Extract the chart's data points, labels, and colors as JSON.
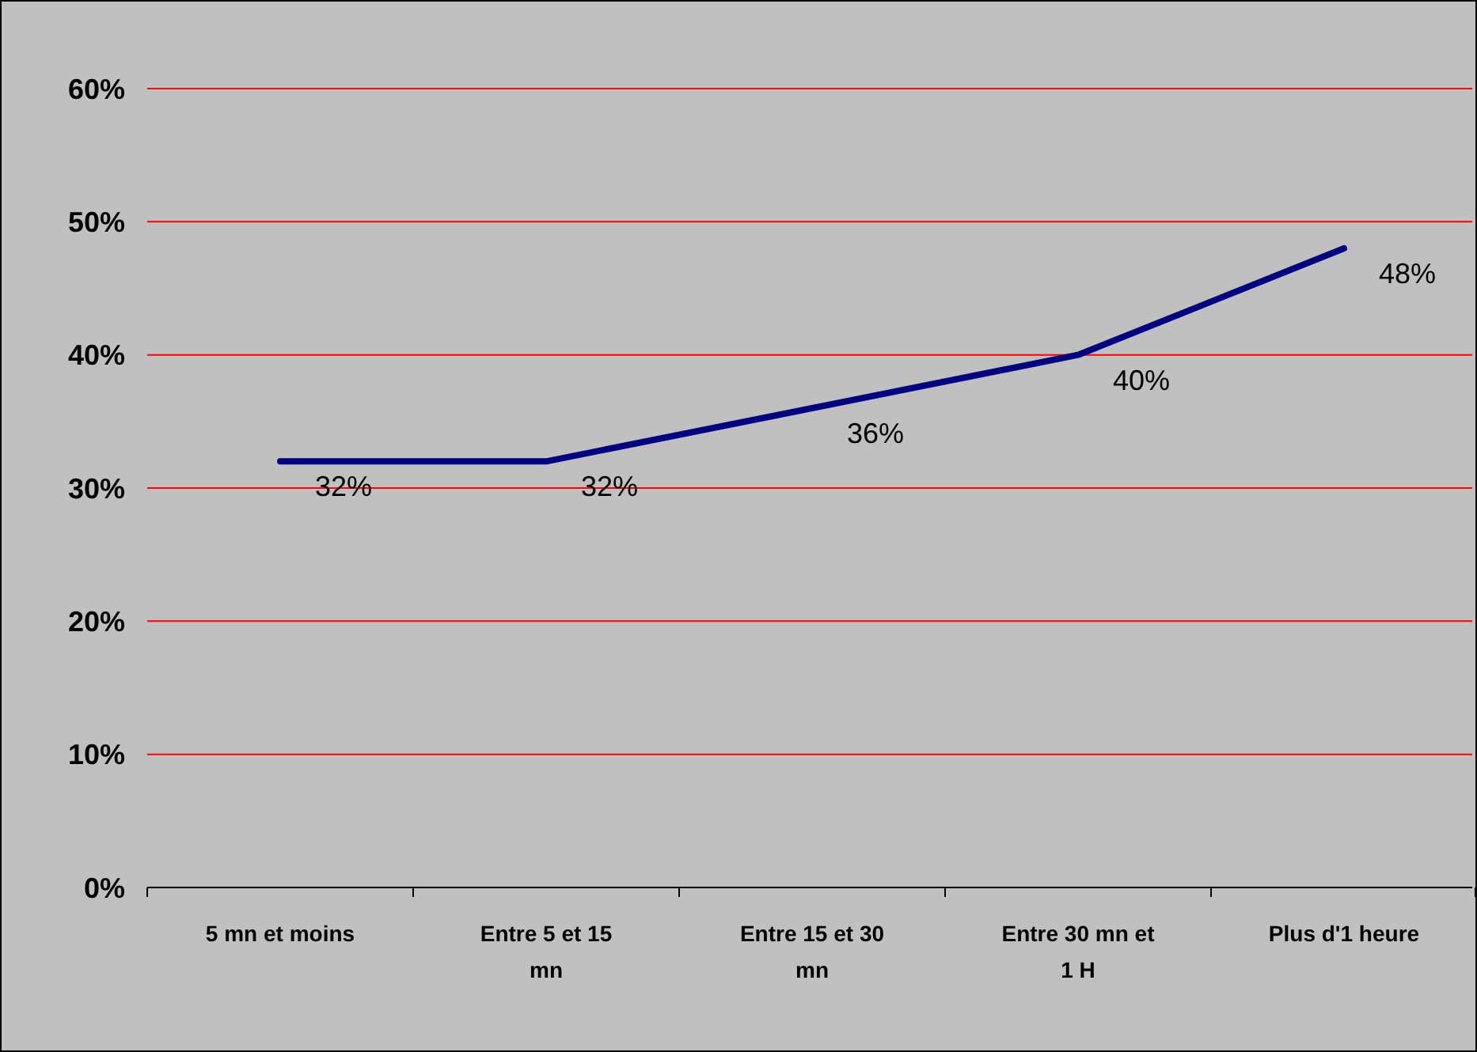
{
  "chart_data": {
    "type": "line",
    "categories": [
      "5 mn et moins",
      "Entre 5 et 15 mn",
      "Entre 15 et 30 mn",
      "Entre 30 mn et 1 H",
      "Plus d'1 heure"
    ],
    "series": [
      {
        "color": "#000080",
        "values": [
          32,
          32,
          36,
          40,
          48
        ],
        "value_labels": [
          "32%",
          "32%",
          "36%",
          "40%",
          "48%"
        ]
      }
    ],
    "ylim": [
      0,
      60
    ],
    "yticks": [
      {
        "value": 0,
        "label": "0%"
      },
      {
        "value": 10,
        "label": "10%"
      },
      {
        "value": 20,
        "label": "20%"
      },
      {
        "value": 30,
        "label": "30%"
      },
      {
        "value": 40,
        "label": "40%"
      },
      {
        "value": 50,
        "label": "50%"
      },
      {
        "value": 60,
        "label": "60%"
      }
    ],
    "grid": "y",
    "marker": "none",
    "line_style": "solid"
  }
}
